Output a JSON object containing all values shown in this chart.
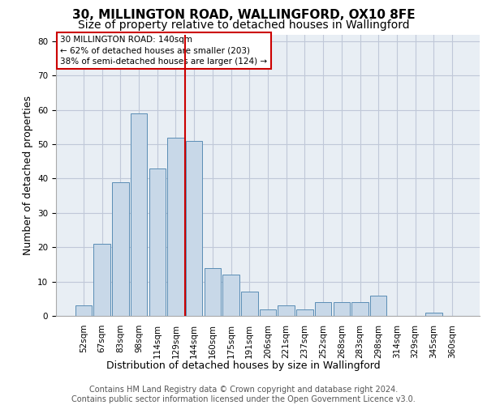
{
  "title1": "30, MILLINGTON ROAD, WALLINGFORD, OX10 8FE",
  "title2": "Size of property relative to detached houses in Wallingford",
  "xlabel": "Distribution of detached houses by size in Wallingford",
  "ylabel": "Number of detached properties",
  "categories": [
    "52sqm",
    "67sqm",
    "83sqm",
    "98sqm",
    "114sqm",
    "129sqm",
    "144sqm",
    "160sqm",
    "175sqm",
    "191sqm",
    "206sqm",
    "221sqm",
    "237sqm",
    "252sqm",
    "268sqm",
    "283sqm",
    "298sqm",
    "314sqm",
    "329sqm",
    "345sqm",
    "360sqm"
  ],
  "values": [
    3,
    21,
    39,
    59,
    43,
    52,
    51,
    14,
    12,
    7,
    2,
    3,
    2,
    4,
    4,
    4,
    6,
    0,
    0,
    1,
    0
  ],
  "bar_color": "#c8d8e8",
  "bar_edge_color": "#5a8db5",
  "vline_color": "#cc0000",
  "annotation_text": "30 MILLINGTON ROAD: 140sqm\n← 62% of detached houses are smaller (203)\n38% of semi-detached houses are larger (124) →",
  "annotation_box_color": "#ffffff",
  "annotation_box_edge": "#cc0000",
  "ylim": [
    0,
    82
  ],
  "yticks": [
    0,
    10,
    20,
    30,
    40,
    50,
    60,
    70,
    80
  ],
  "grid_color": "#c0c8d8",
  "bg_color": "#e8eef4",
  "footer": "Contains HM Land Registry data © Crown copyright and database right 2024.\nContains public sector information licensed under the Open Government Licence v3.0.",
  "title1_fontsize": 11,
  "title2_fontsize": 10,
  "xlabel_fontsize": 9,
  "ylabel_fontsize": 9,
  "tick_fontsize": 7.5,
  "annotation_fontsize": 7.5,
  "footer_fontsize": 7
}
